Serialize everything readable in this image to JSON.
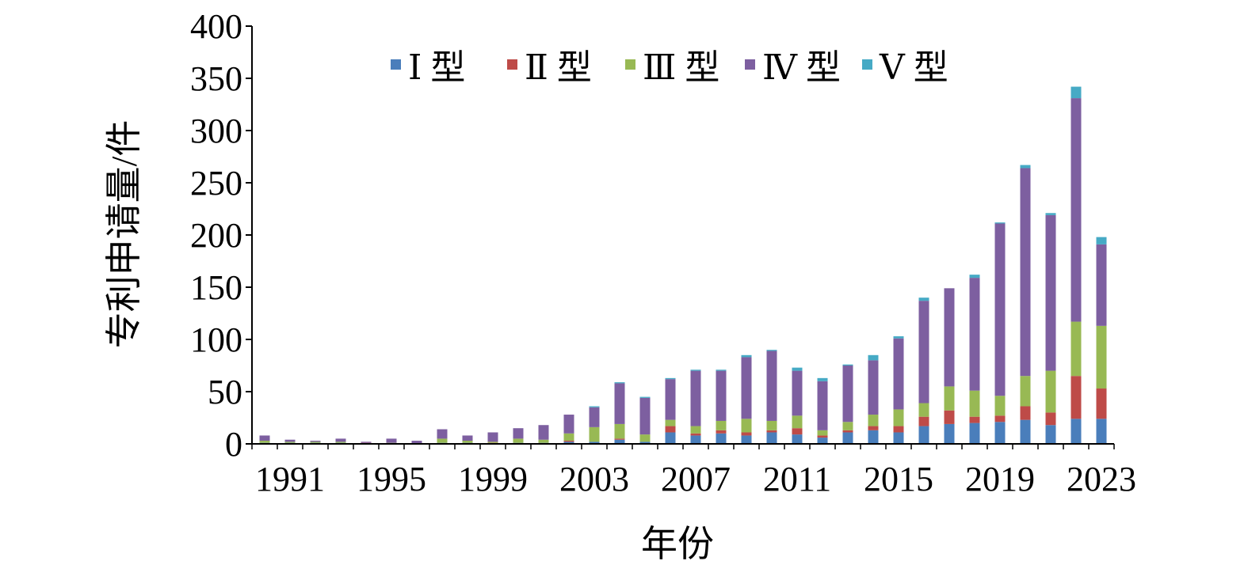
{
  "chart_data": {
    "type": "bar",
    "stacked": true,
    "xlabel": "年份",
    "ylabel": "专利申请量/件",
    "ylim": [
      0,
      400
    ],
    "yticks": [
      "0",
      "50",
      "100",
      "150",
      "200",
      "250",
      "300",
      "350",
      "400"
    ],
    "xtick_labels": [
      "1991",
      "1995",
      "1999",
      "2003",
      "2007",
      "2011",
      "2015",
      "2019",
      "2023"
    ],
    "grid": false,
    "legend_position": "top",
    "categories": [
      "1990",
      "1991",
      "1992",
      "1993",
      "1994",
      "1995",
      "1996",
      "1997",
      "1998",
      "1999",
      "2000",
      "2001",
      "2002",
      "2003",
      "2004",
      "2005",
      "2006",
      "2007",
      "2008",
      "2009",
      "2010",
      "2011",
      "2012",
      "2013",
      "2014",
      "2015",
      "2016",
      "2017",
      "2018",
      "2019",
      "2020",
      "2021",
      "2022",
      "2023"
    ],
    "series": [
      {
        "name": "Ⅰ 型",
        "color": "#4a7ebb",
        "values": [
          1,
          1,
          1,
          1,
          0,
          0,
          0,
          1,
          1,
          0,
          1,
          1,
          2,
          2,
          4,
          2,
          11,
          8,
          10,
          8,
          11,
          9,
          6,
          11,
          13,
          11,
          17,
          19,
          20,
          21,
          23,
          18,
          24,
          24
        ]
      },
      {
        "name": "Ⅱ 型",
        "color": "#be4b48",
        "values": [
          0,
          0,
          0,
          0,
          1,
          0,
          0,
          0,
          0,
          1,
          0,
          0,
          1,
          0,
          1,
          0,
          6,
          2,
          3,
          3,
          2,
          6,
          2,
          2,
          4,
          6,
          9,
          13,
          6,
          6,
          13,
          12,
          41,
          29
        ]
      },
      {
        "name": "Ⅲ 型",
        "color": "#98b954",
        "values": [
          2,
          1,
          1,
          1,
          0,
          1,
          0,
          4,
          2,
          1,
          4,
          3,
          7,
          14,
          14,
          7,
          6,
          7,
          9,
          13,
          9,
          12,
          5,
          8,
          11,
          16,
          13,
          23,
          25,
          19,
          29,
          40,
          52,
          60
        ]
      },
      {
        "name": "Ⅳ 型",
        "color": "#7d5fa0",
        "values": [
          5,
          2,
          1,
          3,
          1,
          4,
          3,
          9,
          5,
          9,
          10,
          14,
          18,
          19,
          39,
          35,
          39,
          53,
          48,
          59,
          67,
          43,
          47,
          54,
          52,
          68,
          98,
          94,
          108,
          165,
          199,
          149,
          214,
          78
        ]
      },
      {
        "name": "Ⅴ 型",
        "color": "#46aac5",
        "values": [
          0,
          0,
          0,
          0,
          0,
          0,
          0,
          0,
          0,
          0,
          0,
          0,
          0,
          1,
          1,
          1,
          1,
          1,
          1,
          2,
          1,
          3,
          3,
          1,
          5,
          2,
          3,
          0,
          3,
          1,
          3,
          2,
          11,
          7
        ]
      }
    ]
  }
}
